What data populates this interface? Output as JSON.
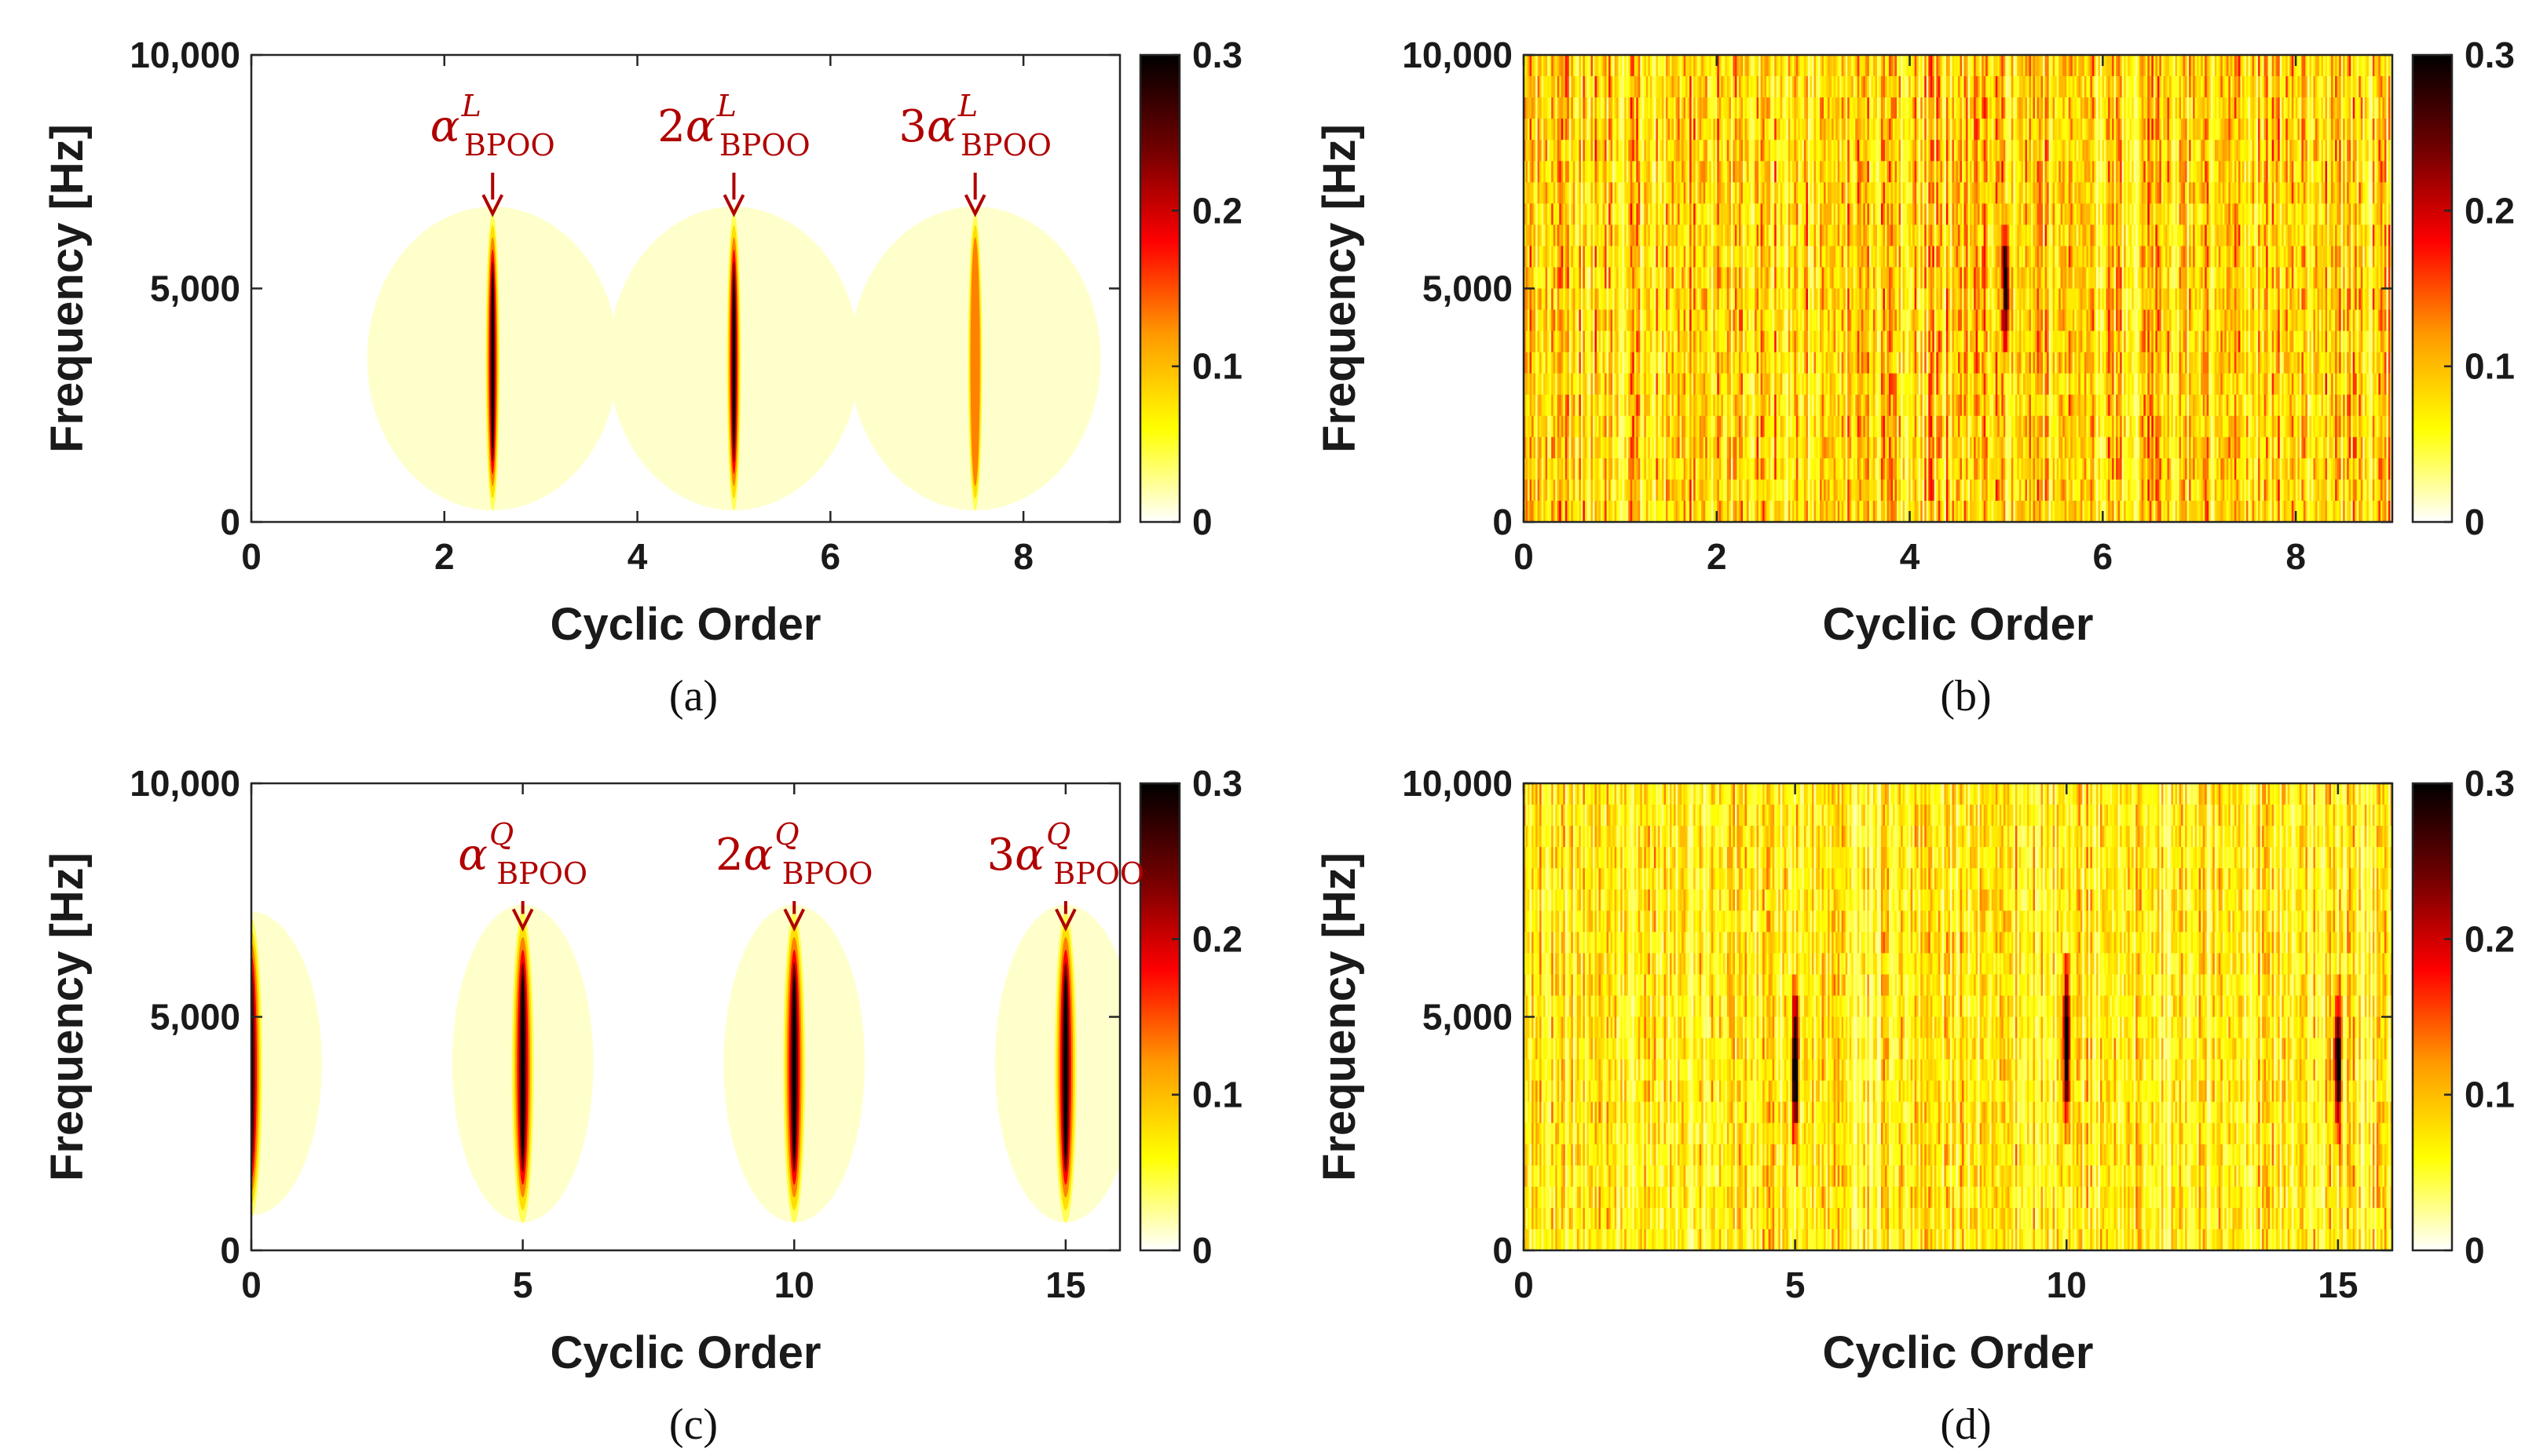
{
  "colorbar": {
    "colormap": "hot-reversed",
    "stops": [
      "#ffffff",
      "#ffff00",
      "#ff9b00",
      "#ff0000",
      "#700000",
      "#000000"
    ],
    "ticks": [
      "0",
      "0.1",
      "0.2",
      "0.3"
    ],
    "range": [
      0,
      0.3
    ]
  },
  "annotation_color": "#b00000",
  "chart_data": [
    {
      "type": "heatmap",
      "caption": "(a)",
      "xlabel": "Cyclic Order",
      "ylabel": "Frequency [Hz]",
      "xlim": [
        0,
        9
      ],
      "ylim": [
        0,
        10000
      ],
      "xticks": [
        "0",
        "2",
        "4",
        "6",
        "8"
      ],
      "yticks": [
        "0",
        "5,000",
        "10,000"
      ],
      "pattern": "sparse-peaks",
      "peaks": [
        {
          "x": 2.5,
          "f_center": 3500,
          "f_span": [
            0,
            6500
          ],
          "value": 0.3
        },
        {
          "x": 5.0,
          "f_center": 3500,
          "f_span": [
            0,
            6500
          ],
          "value": 0.3
        },
        {
          "x": 7.5,
          "f_center": 3500,
          "f_span": [
            0,
            6500
          ],
          "value": 0.15
        }
      ],
      "annotations": [
        {
          "coef": "",
          "base": "α",
          "sup": "L",
          "sub": "BPOO",
          "x": 2.5
        },
        {
          "coef": "2",
          "base": "α",
          "sup": "L",
          "sub": "BPOO",
          "x": 5.0
        },
        {
          "coef": "3",
          "base": "α",
          "sup": "L",
          "sub": "BPOO",
          "x": 7.5
        }
      ]
    },
    {
      "type": "heatmap",
      "caption": "(b)",
      "xlabel": "Cyclic Order",
      "ylabel": "Frequency [Hz]",
      "xlim": [
        0,
        9
      ],
      "ylim": [
        0,
        10000
      ],
      "xticks": [
        "0",
        "2",
        "4",
        "6",
        "8"
      ],
      "yticks": [
        "0",
        "5,000",
        "10,000"
      ],
      "pattern": "noise",
      "noise_level": 0.1,
      "peaks": [
        {
          "x": 5.0,
          "f_center": 5000,
          "f_span": [
            3000,
            7000
          ],
          "value": 0.25
        }
      ],
      "annotations": []
    },
    {
      "type": "heatmap",
      "caption": "(c)",
      "xlabel": "Cyclic Order",
      "ylabel": "Frequency [Hz]",
      "xlim": [
        0,
        16
      ],
      "ylim": [
        0,
        10000
      ],
      "xticks": [
        "0",
        "5",
        "10",
        "15"
      ],
      "yticks": [
        "0",
        "5,000",
        "10,000"
      ],
      "pattern": "sparse-peaks",
      "peaks": [
        {
          "x": 0,
          "f_center": 4000,
          "f_span": [
            0,
            6500
          ],
          "value": 0.3
        },
        {
          "x": 5,
          "f_center": 4000,
          "f_span": [
            0,
            6800
          ],
          "value": 0.3
        },
        {
          "x": 10,
          "f_center": 4000,
          "f_span": [
            0,
            6800
          ],
          "value": 0.3
        },
        {
          "x": 15,
          "f_center": 4000,
          "f_span": [
            0,
            6800
          ],
          "value": 0.3
        }
      ],
      "annotations": [
        {
          "coef": "",
          "base": "α",
          "sup": "Q",
          "sub": "BPOO",
          "x": 5
        },
        {
          "coef": "2",
          "base": "α",
          "sup": "Q",
          "sub": "BPOO",
          "x": 10
        },
        {
          "coef": "3",
          "base": "α",
          "sup": "Q",
          "sub": "BPOO",
          "x": 15
        }
      ]
    },
    {
      "type": "heatmap",
      "caption": "(d)",
      "xlabel": "Cyclic Order",
      "ylabel": "Frequency [Hz]",
      "xlim": [
        0,
        16
      ],
      "ylim": [
        0,
        10000
      ],
      "xticks": [
        "0",
        "5",
        "10",
        "15"
      ],
      "yticks": [
        "0",
        "5,000",
        "10,000"
      ],
      "pattern": "noise",
      "noise_level": 0.08,
      "peaks": [
        {
          "x": 5,
          "f_center": 4000,
          "f_span": [
            1500,
            6000
          ],
          "value": 0.3
        },
        {
          "x": 10,
          "f_center": 4500,
          "f_span": [
            1500,
            6500
          ],
          "value": 0.28
        },
        {
          "x": 15,
          "f_center": 4000,
          "f_span": [
            1500,
            6000
          ],
          "value": 0.28
        }
      ],
      "annotations": []
    }
  ]
}
